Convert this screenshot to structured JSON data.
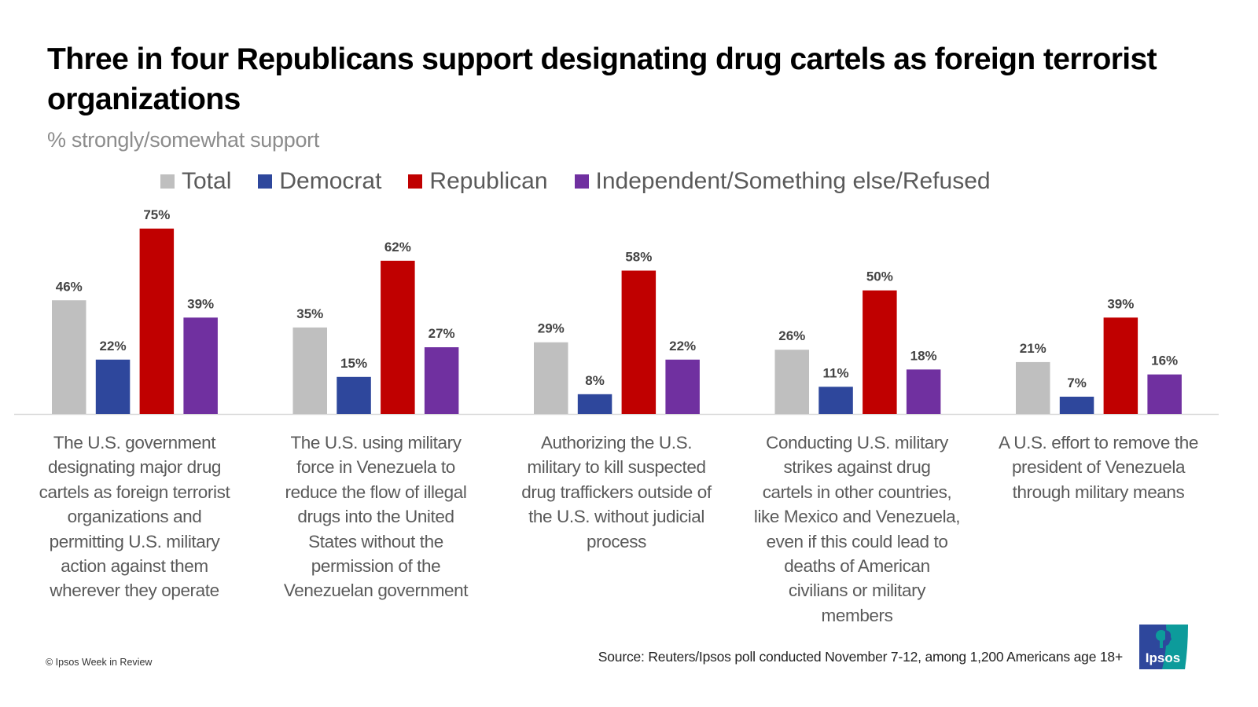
{
  "title": "Three in four Republicans support designating drug cartels as foreign terrorist organizations",
  "subtitle": "% strongly/somewhat support",
  "colors": {
    "Total": "#bfbfbf",
    "Democrat": "#2e479c",
    "Republican": "#c00000",
    "Independent": "#7030a0"
  },
  "legend": [
    {
      "label": "Total",
      "color": "#bfbfbf"
    },
    {
      "label": "Democrat",
      "color": "#2e479c"
    },
    {
      "label": "Republican",
      "color": "#c00000"
    },
    {
      "label": "Independent/Something else/Refused",
      "color": "#7030a0"
    }
  ],
  "chart_data": {
    "type": "bar",
    "title": "Three in four Republicans support designating drug cartels as foreign terrorist organizations",
    "subtitle": "% strongly/somewhat support",
    "xlabel": "",
    "ylabel": "",
    "ylim": [
      0,
      80
    ],
    "grid": false,
    "legend_position": "top",
    "value_suffix": "%",
    "categories": [
      "The U.S. government designating major drug cartels as foreign terrorist organizations and permitting U.S. military action against them wherever they operate",
      "The U.S. using military force in Venezuela to reduce the flow of illegal drugs into the United States without the permission of the Venezuelan government",
      "Authorizing the U.S. military to kill suspected drug traffickers outside of the U.S. without judicial process",
      "Conducting U.S. military strikes against drug cartels in other countries, like Mexico and Venezuela, even if this could lead to deaths of American civilians or military members",
      "A U.S. effort to remove the president of Venezuela through military means"
    ],
    "category_lines": [
      "The U.S. government\ndesignating major drug\ncartels as foreign terrorist\norganizations and\npermitting U.S. military\naction against them\nwherever they operate",
      "The U.S. using military\nforce in Venezuela to\nreduce the flow of illegal\ndrugs into the United\nStates without the\npermission of the\nVenezuelan government",
      "Authorizing the U.S.\nmilitary to kill suspected\ndrug traffickers outside of\nthe U.S. without judicial\nprocess",
      "Conducting U.S. military\nstrikes against drug\ncartels in other countries,\nlike Mexico and Venezuela,\neven if this could lead to\ndeaths of American\ncivilians or military\nmembers",
      "A U.S. effort to remove the\npresident of Venezuela\nthrough military means"
    ],
    "series": [
      {
        "name": "Total",
        "color": "#bfbfbf",
        "values": [
          46,
          35,
          29,
          26,
          21
        ]
      },
      {
        "name": "Democrat",
        "color": "#2e479c",
        "values": [
          22,
          15,
          8,
          11,
          7
        ]
      },
      {
        "name": "Republican",
        "color": "#c00000",
        "values": [
          75,
          62,
          58,
          50,
          39
        ]
      },
      {
        "name": "Independent/Something else/Refused",
        "color": "#7030a0",
        "values": [
          39,
          27,
          22,
          18,
          16
        ]
      }
    ]
  },
  "footer": {
    "copyright": "© Ipsos Week in Review",
    "source": "Source: Reuters/Ipsos poll conducted November 7-12, among 1,200 Americans age 18+",
    "logo_text": "Ipsos"
  }
}
